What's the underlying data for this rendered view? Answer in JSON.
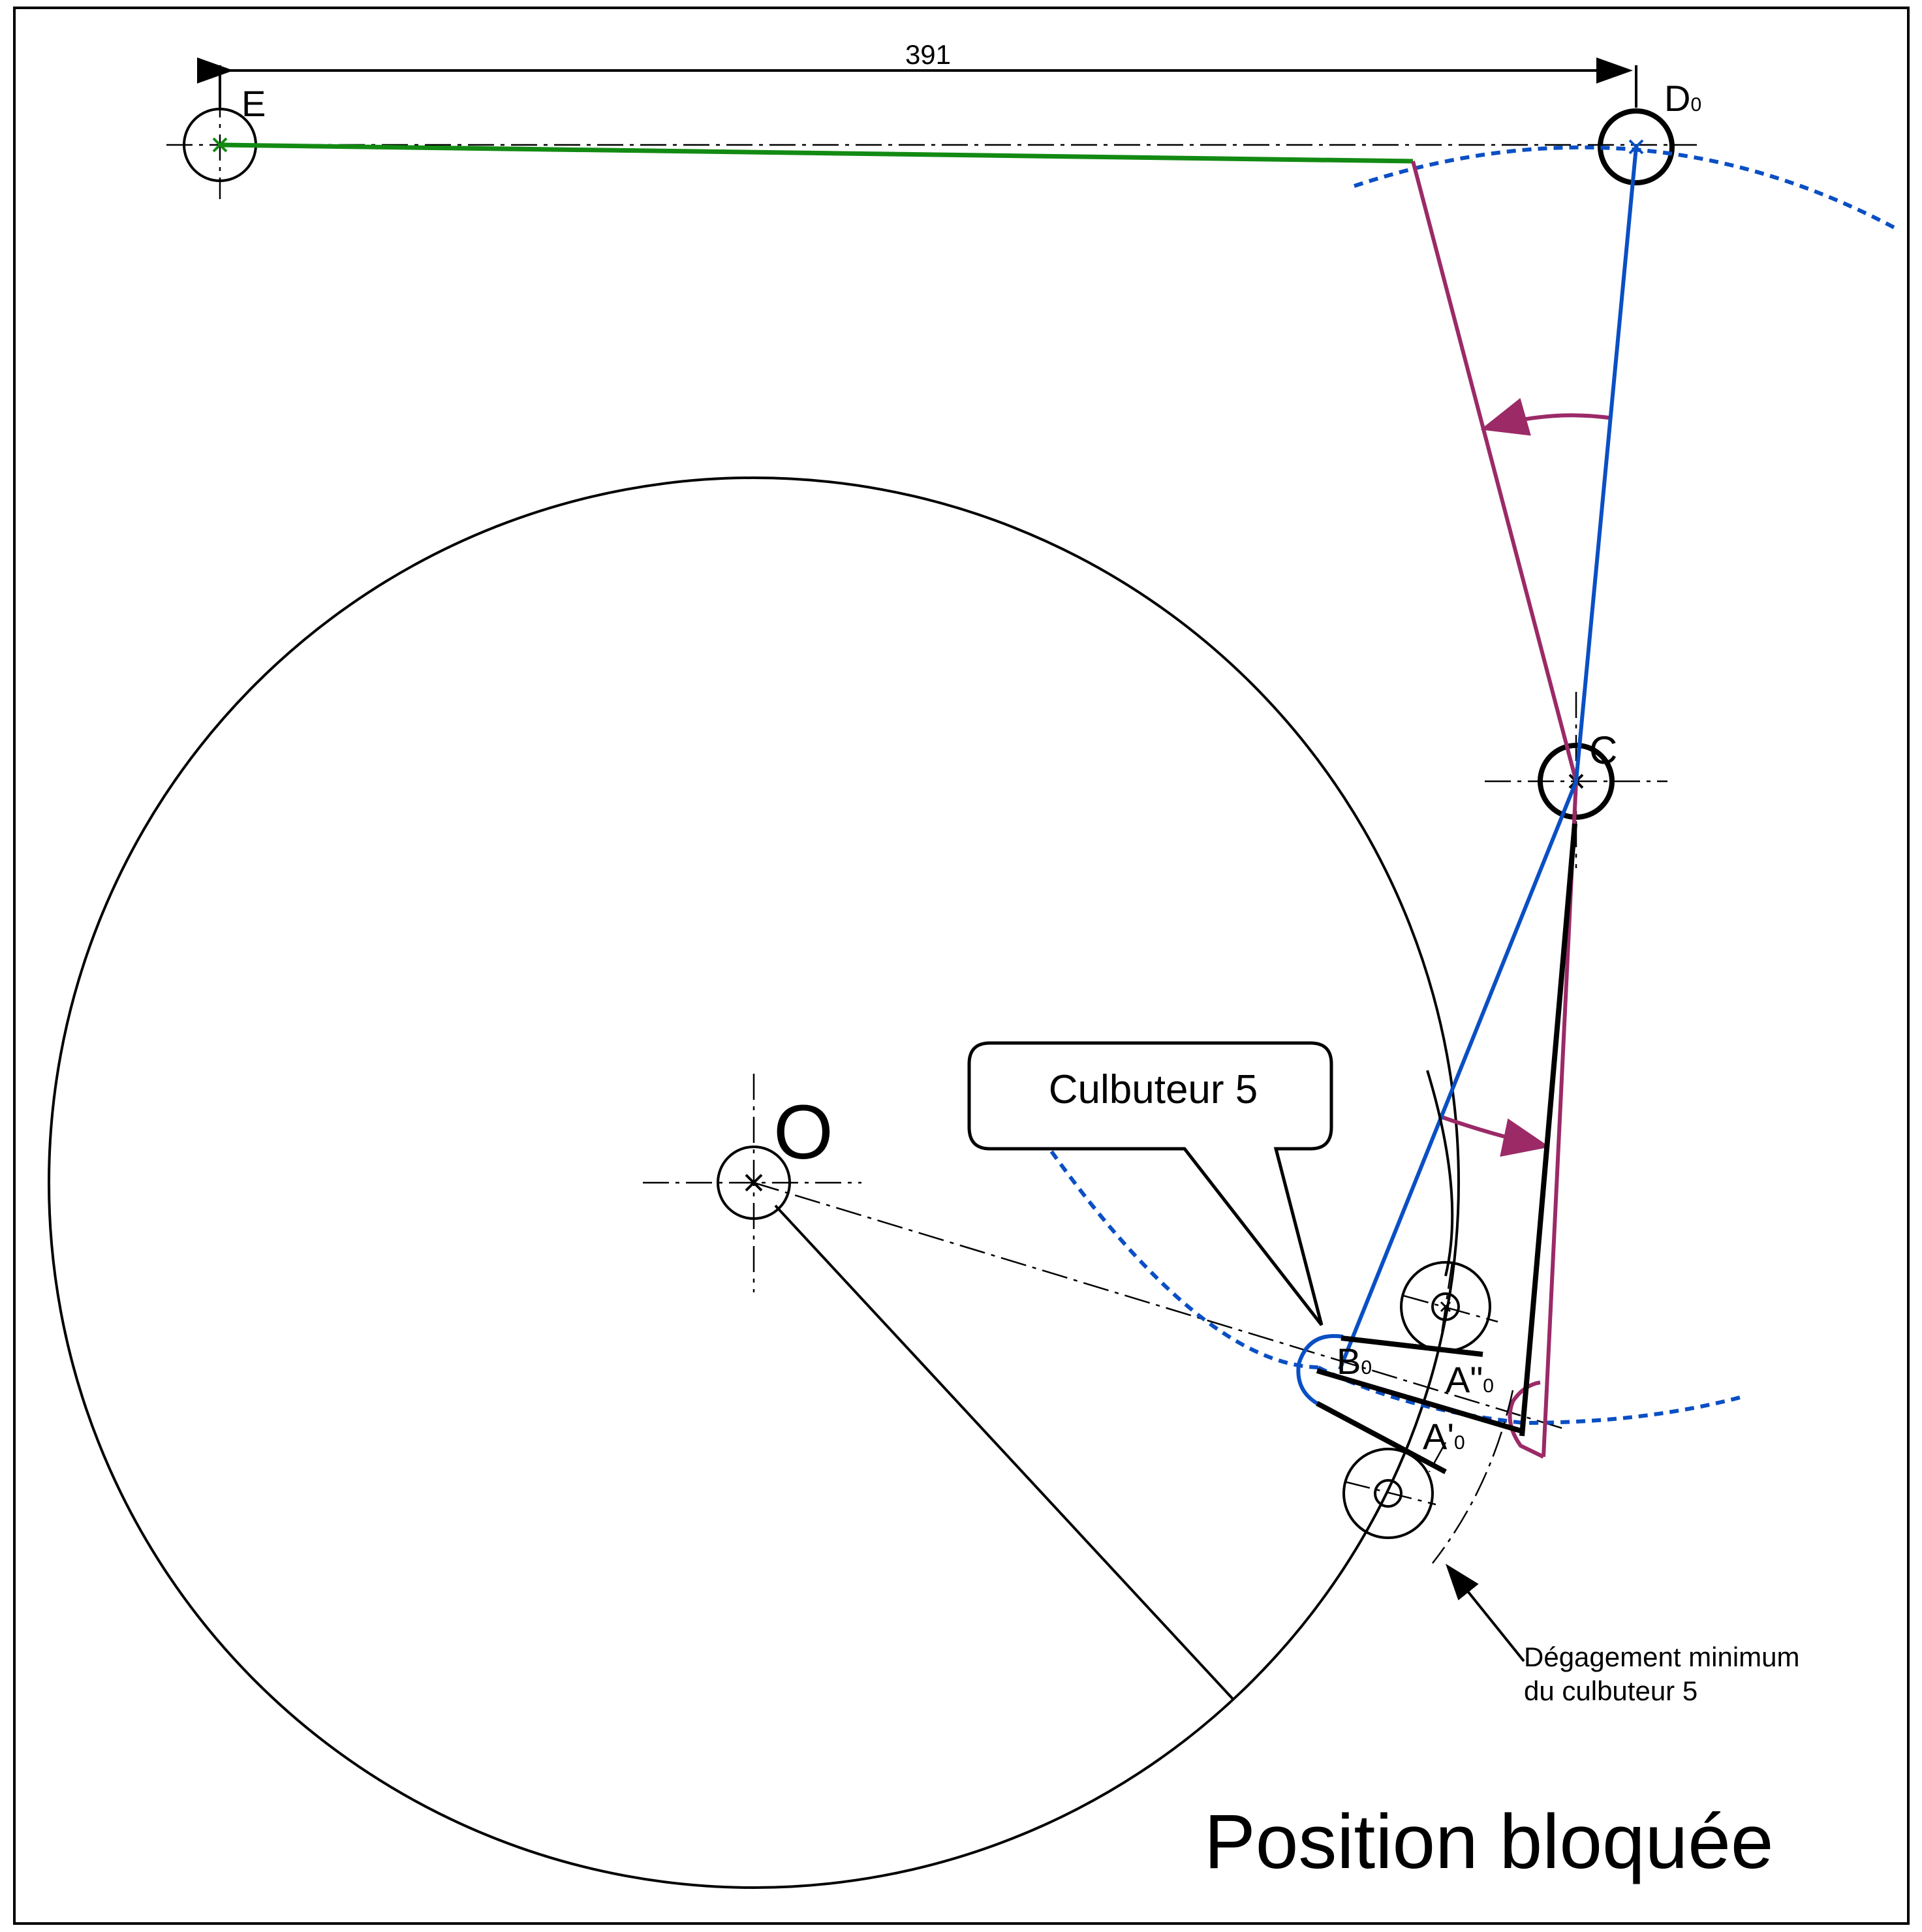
{
  "dimension": {
    "value": "391"
  },
  "points": {
    "E": "E",
    "D0": {
      "main": "D",
      "sub": "0"
    },
    "C": "C",
    "O": "O",
    "B0": {
      "main": "B",
      "sub": "0"
    },
    "A2_0": {
      "main": "A\"",
      "sub": "0"
    },
    "A1_0": {
      "main": "A'",
      "sub": "0"
    }
  },
  "callout": {
    "label": "Culbuteur 5"
  },
  "annotation": {
    "line1": "Dégagement minimum",
    "line2": "du culbuteur 5"
  },
  "caption": "Position bloquée",
  "colors": {
    "blue": "#0a4fc4",
    "purple": "#9b2a67",
    "green": "#138a13",
    "ink": "#000000"
  }
}
